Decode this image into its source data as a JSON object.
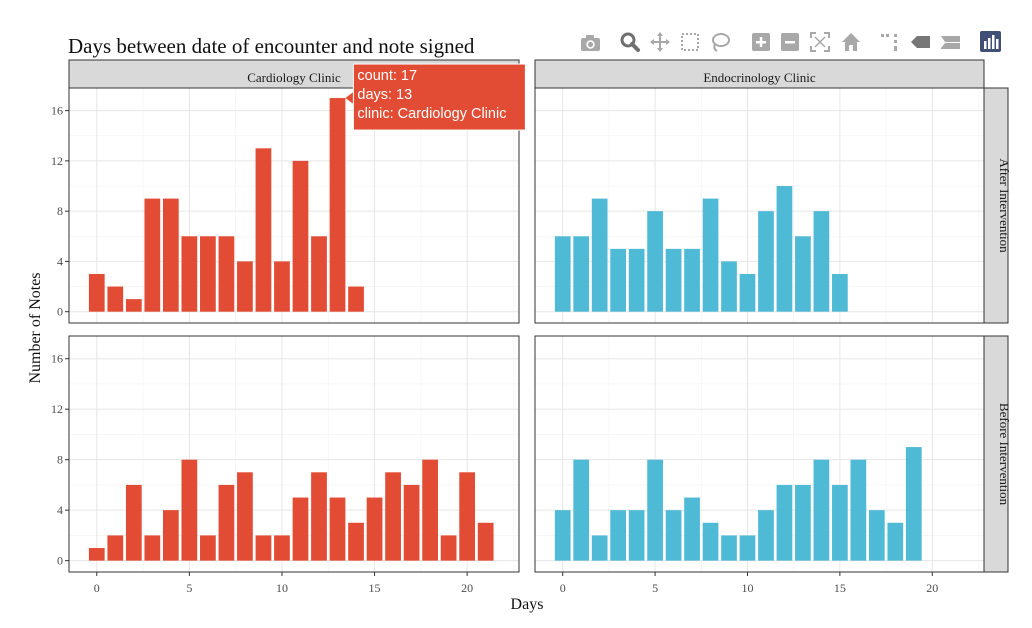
{
  "chart_data": {
    "type": "bar",
    "title": "Days between date of encounter and note signed",
    "xlabel": "Days",
    "ylabel": "Number of Notes",
    "xlim": [
      -1.5,
      22.8
    ],
    "ylim": [
      -0.9,
      17.8
    ],
    "x_ticks": [
      0,
      5,
      10,
      15,
      20
    ],
    "y_ticks": [
      0,
      4,
      8,
      12,
      16
    ],
    "grid": true,
    "columns": [
      "Cardiology Clinic",
      "Endocrinology Clinic"
    ],
    "rows": [
      "After Intervention",
      "Before Intervention"
    ],
    "colors": {
      "Cardiology Clinic": "#e34c34",
      "Endocrinology Clinic": "#4fbad6"
    },
    "panels": [
      {
        "clinic": "Cardiology Clinic",
        "period": "After Intervention",
        "x": [
          0,
          1,
          2,
          3,
          4,
          5,
          6,
          7,
          8,
          9,
          10,
          11,
          12,
          13,
          14
        ],
        "values": [
          3,
          2,
          1,
          9,
          9,
          6,
          6,
          6,
          4,
          13,
          4,
          12,
          6,
          17,
          2
        ]
      },
      {
        "clinic": "Endocrinology Clinic",
        "period": "After Intervention",
        "x": [
          0,
          1,
          2,
          3,
          4,
          5,
          6,
          7,
          8,
          9,
          10,
          11,
          12,
          13,
          14,
          15
        ],
        "values": [
          6,
          6,
          9,
          5,
          5,
          8,
          5,
          5,
          9,
          4,
          3,
          8,
          10,
          6,
          8,
          3
        ]
      },
      {
        "clinic": "Cardiology Clinic",
        "period": "Before Intervention",
        "x": [
          0,
          1,
          2,
          3,
          4,
          5,
          6,
          7,
          8,
          9,
          10,
          11,
          12,
          13,
          14,
          15,
          16,
          17,
          18,
          19,
          20,
          21
        ],
        "values": [
          1,
          2,
          6,
          2,
          4,
          8,
          2,
          6,
          7,
          2,
          2,
          5,
          7,
          5,
          3,
          5,
          7,
          6,
          8,
          2,
          7,
          3
        ]
      },
      {
        "clinic": "Endocrinology Clinic",
        "period": "Before Intervention",
        "x": [
          0,
          1,
          2,
          3,
          4,
          5,
          6,
          7,
          8,
          9,
          10,
          11,
          12,
          13,
          14,
          15,
          16,
          17,
          18,
          19
        ],
        "values": [
          4,
          8,
          2,
          4,
          4,
          8,
          4,
          5,
          3,
          2,
          2,
          4,
          6,
          6,
          8,
          6,
          8,
          4,
          3,
          9
        ]
      }
    ],
    "tooltip": {
      "panel": 0,
      "x": 13,
      "lines": [
        "count: 17",
        "days: 13",
        "clinic: Cardiology Clinic"
      ]
    }
  },
  "modebar": {
    "icons": [
      "camera-icon",
      "zoom-icon",
      "pan-icon",
      "box-select-icon",
      "lasso-select-icon",
      "zoom-in-icon",
      "zoom-out-icon",
      "autoscale-icon",
      "reset-axes-icon",
      "spike-lines-icon",
      "hover-closest-icon",
      "hover-compare-icon",
      "plotly-logo-icon"
    ]
  }
}
